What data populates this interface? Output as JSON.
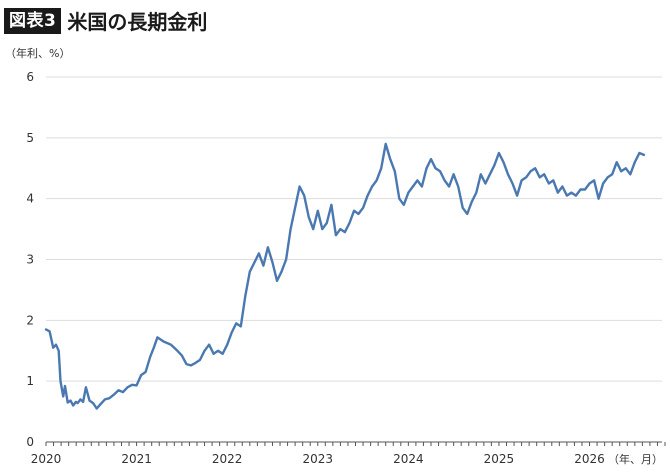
{
  "header": {
    "badge": "図表3",
    "title": "米国の長期金利"
  },
  "unit_label": "（年利、%）",
  "x_unit_label": "（年、月）",
  "colors": {
    "line": "#4a78b0",
    "grid": "#dddddd",
    "axis": "#555555"
  },
  "chart_data": {
    "type": "line",
    "title": "米国の長期金利",
    "ylabel": "（年利、%）",
    "xlabel": "（年、月）",
    "ylim": [
      0,
      6
    ],
    "yticks": [
      "0",
      "1",
      "2",
      "3",
      "4",
      "5",
      "6"
    ],
    "xlim": [
      2020.0,
      2026.8
    ],
    "xticks": [
      "2020",
      "2021",
      "2022",
      "2023",
      "2024",
      "2025",
      "2026"
    ],
    "grid": true,
    "series": [
      {
        "x": [
          2020.0,
          2020.04,
          2020.08,
          2020.11,
          2020.14,
          2020.16,
          2020.19,
          2020.21,
          2020.24,
          2020.27,
          2020.3,
          2020.33,
          2020.35,
          2020.38,
          2020.41,
          2020.44,
          2020.48,
          2020.52,
          2020.56,
          2020.6,
          2020.65,
          2020.7,
          2020.75,
          2020.8,
          2020.85,
          2020.9,
          2020.95,
          2021.0,
          2021.05,
          2021.1,
          2021.15,
          2021.19,
          2021.23,
          2021.3,
          2021.38,
          2021.45,
          2021.5,
          2021.55,
          2021.6,
          2021.65,
          2021.7,
          2021.75,
          2021.8,
          2021.85,
          2021.9,
          2021.95,
          2022.0,
          2022.05,
          2022.1,
          2022.15,
          2022.2,
          2022.25,
          2022.3,
          2022.35,
          2022.4,
          2022.45,
          2022.5,
          2022.55,
          2022.6,
          2022.65,
          2022.7,
          2022.75,
          2022.8,
          2022.85,
          2022.9,
          2022.95,
          2023.0,
          2023.05,
          2023.1,
          2023.15,
          2023.2,
          2023.25,
          2023.3,
          2023.35,
          2023.4,
          2023.45,
          2023.5,
          2023.55,
          2023.6,
          2023.65,
          2023.7,
          2023.75,
          2023.8,
          2023.85,
          2023.9,
          2023.95,
          2024.0,
          2024.05,
          2024.1,
          2024.15,
          2024.2,
          2024.25,
          2024.3,
          2024.35,
          2024.4,
          2024.45,
          2024.5,
          2024.55,
          2024.6,
          2024.65,
          2024.7,
          2024.75,
          2024.8,
          2024.85,
          2024.9,
          2024.95,
          2025.0,
          2025.05,
          2025.1,
          2025.15,
          2025.2,
          2025.25,
          2025.3,
          2025.35,
          2025.4,
          2025.45,
          2025.5,
          2025.55,
          2025.6,
          2025.65,
          2025.7,
          2025.75,
          2025.8,
          2025.85,
          2025.9,
          2025.95,
          2026.0,
          2026.05,
          2026.1,
          2026.15,
          2026.2,
          2026.25,
          2026.3,
          2026.35,
          2026.4,
          2026.45,
          2026.5,
          2026.55,
          2026.6
        ],
        "values": [
          1.85,
          1.82,
          1.55,
          1.6,
          1.5,
          1.0,
          0.75,
          0.92,
          0.65,
          0.68,
          0.6,
          0.66,
          0.64,
          0.7,
          0.66,
          0.9,
          0.68,
          0.64,
          0.55,
          0.62,
          0.7,
          0.72,
          0.78,
          0.85,
          0.82,
          0.9,
          0.94,
          0.93,
          1.1,
          1.15,
          1.4,
          1.55,
          1.72,
          1.65,
          1.6,
          1.5,
          1.42,
          1.28,
          1.26,
          1.3,
          1.35,
          1.5,
          1.6,
          1.45,
          1.5,
          1.45,
          1.6,
          1.8,
          1.95,
          1.9,
          2.4,
          2.8,
          2.95,
          3.1,
          2.9,
          3.2,
          2.95,
          2.65,
          2.8,
          3.0,
          3.5,
          3.85,
          4.2,
          4.05,
          3.7,
          3.5,
          3.8,
          3.5,
          3.6,
          3.9,
          3.4,
          3.5,
          3.45,
          3.6,
          3.8,
          3.75,
          3.85,
          4.05,
          4.2,
          4.3,
          4.5,
          4.9,
          4.65,
          4.45,
          4.0,
          3.9,
          4.1,
          4.2,
          4.3,
          4.2,
          4.5,
          4.65,
          4.5,
          4.45,
          4.3,
          4.2,
          4.4,
          4.2,
          3.85,
          3.75,
          3.95,
          4.1,
          4.4,
          4.25,
          4.4,
          4.55,
          4.75,
          4.6,
          4.4,
          4.25,
          4.05,
          4.3,
          4.35,
          4.45,
          4.5,
          4.35,
          4.4,
          4.25,
          4.3,
          4.1,
          4.2,
          4.05,
          4.1,
          4.05,
          4.15,
          4.15,
          4.25,
          4.3,
          4.0,
          4.25,
          4.35,
          4.4,
          4.6,
          4.45,
          4.5,
          4.4,
          4.6,
          4.75,
          4.72
        ]
      }
    ]
  }
}
